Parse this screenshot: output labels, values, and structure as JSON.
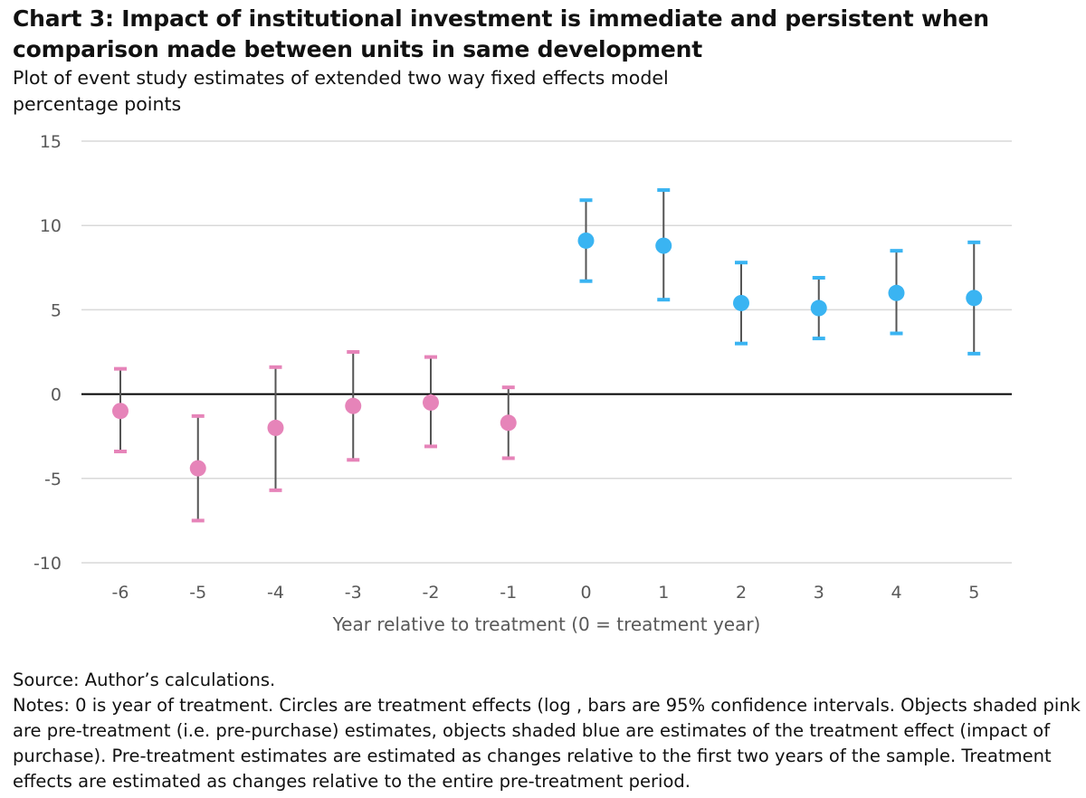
{
  "title": "Chart 3: Impact of institutional investment is immediate and persistent when comparison made between units in same development",
  "subtitle": "Plot of event study estimates of extended two way fixed effects model",
  "unit_label": "percentage points",
  "source": "Source: Author’s calculations.",
  "notes": "Notes: 0 is year of treatment. Circles are treatment effects (log , bars are 95% confidence intervals. Objects shaded pink are pre-treatment (i.e. pre-purchase) estimates, objects shaded blue are estimates of the treatment effect (impact of purchase). Pre-treatment estimates are estimated as changes relative to the first two years of the sample. Treatment effects are estimated as changes relative to the entire pre-treatment period.",
  "colors": {
    "pre_treatment": "#e684b9",
    "treatment": "#3ab4f2",
    "whisker": "#555555",
    "grid": "#d9d9d9",
    "zero_line": "#000000",
    "axis_text": "#595959"
  },
  "chart_data": {
    "type": "scatter",
    "xlabel": "Year relative to treatment (0 =  treatment year)",
    "ylabel": "",
    "ylim": [
      -10,
      15
    ],
    "yticks": [
      -10,
      -5,
      0,
      5,
      10,
      15
    ],
    "categories": [
      "-6",
      "-5",
      "-4",
      "-3",
      "-2",
      "-1",
      "0",
      "1",
      "2",
      "3",
      "4",
      "5"
    ],
    "grid": true,
    "legend": "none",
    "points": [
      {
        "x": "-6",
        "y": -1.0,
        "lower": -3.4,
        "upper": 1.5,
        "group": "pre"
      },
      {
        "x": "-5",
        "y": -4.4,
        "lower": -7.5,
        "upper": -1.3,
        "group": "pre"
      },
      {
        "x": "-4",
        "y": -2.0,
        "lower": -5.7,
        "upper": 1.6,
        "group": "pre"
      },
      {
        "x": "-3",
        "y": -0.7,
        "lower": -3.9,
        "upper": 2.5,
        "group": "pre"
      },
      {
        "x": "-2",
        "y": -0.5,
        "lower": -3.1,
        "upper": 2.2,
        "group": "pre"
      },
      {
        "x": "-1",
        "y": -1.7,
        "lower": -3.8,
        "upper": 0.4,
        "group": "pre"
      },
      {
        "x": "0",
        "y": 9.1,
        "lower": 6.7,
        "upper": 11.5,
        "group": "treatment"
      },
      {
        "x": "1",
        "y": 8.8,
        "lower": 5.6,
        "upper": 12.1,
        "group": "treatment"
      },
      {
        "x": "2",
        "y": 5.4,
        "lower": 3.0,
        "upper": 7.8,
        "group": "treatment"
      },
      {
        "x": "3",
        "y": 5.1,
        "lower": 3.3,
        "upper": 6.9,
        "group": "treatment"
      },
      {
        "x": "4",
        "y": 6.0,
        "lower": 3.6,
        "upper": 8.5,
        "group": "treatment"
      },
      {
        "x": "5",
        "y": 5.7,
        "lower": 2.4,
        "upper": 9.0,
        "group": "treatment"
      }
    ]
  }
}
